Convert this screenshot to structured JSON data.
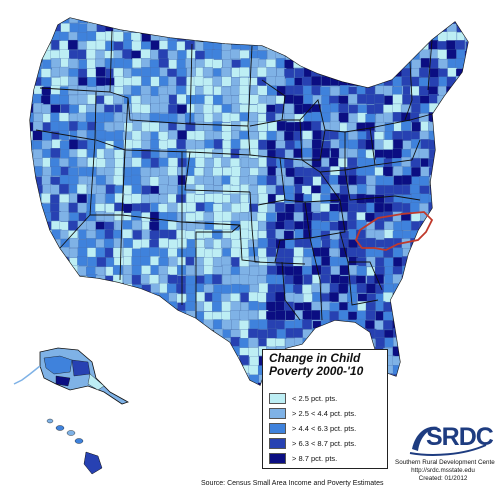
{
  "title": {
    "line1": "Change in Child",
    "line2": "Poverty 2000-'10"
  },
  "legend": {
    "items": [
      {
        "label": "< 2.5 pct. pts.",
        "color": "#bdeef4"
      },
      {
        "label": "> 2.5 < 4.4 pct. pts.",
        "color": "#7fb2e6"
      },
      {
        "label": "> 4.4 < 6.3 pct. pts.",
        "color": "#3f82dc"
      },
      {
        "label": "> 6.3 < 8.7 pct. pts.",
        "color": "#2741b2"
      },
      {
        "label": "> 8.7 pct. pts.",
        "color": "#0b0e82"
      }
    ]
  },
  "highlight": {
    "state": "North Carolina",
    "outline_color": "#c0392b"
  },
  "source": "Source: Census Small Area Income and Poverty Estimates",
  "logo": {
    "text": "SRDC",
    "mark": "swoosh-logo"
  },
  "credits": {
    "line1": "Southern Rural Development Center",
    "line2": "http://srdc.msstate.edu",
    "line3": "Created: 01/2012"
  }
}
